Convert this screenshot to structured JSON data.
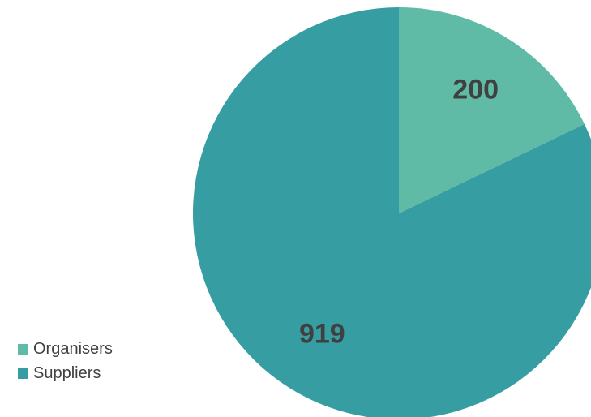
{
  "chart_data": {
    "type": "pie",
    "title": "",
    "slices": [
      {
        "name": "Organisers",
        "value": 200,
        "label": "200",
        "color": "#5fbba6"
      },
      {
        "name": "Suppliers",
        "value": 919,
        "label": "919",
        "color": "#369ea3"
      }
    ],
    "start_angle_deg": 0,
    "direction": "clockwise",
    "legend_position": "bottom-left"
  }
}
